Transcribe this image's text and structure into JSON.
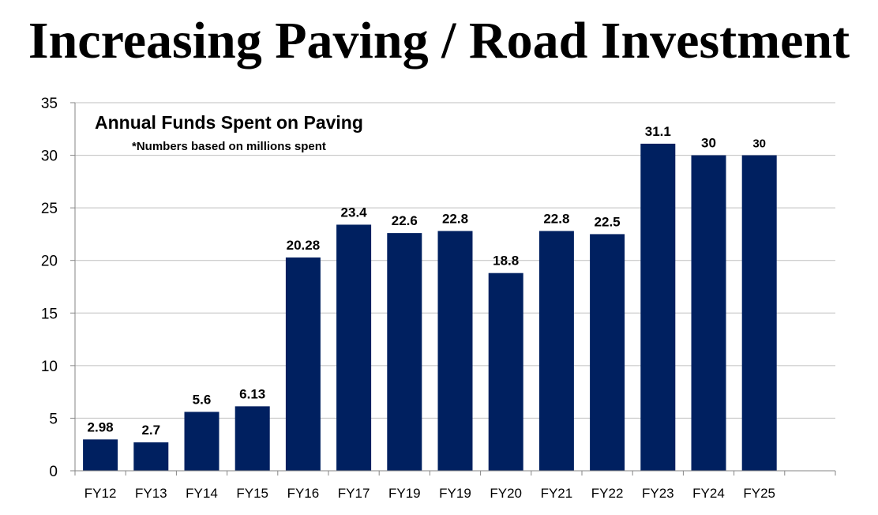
{
  "page": {
    "title": "Increasing Paving / Road Investment"
  },
  "colors": {
    "bar": "#002060",
    "grid": "#bfbfbf",
    "axis": "#868686"
  },
  "chart_data": {
    "type": "bar",
    "title": "Annual Funds Spent on Paving",
    "subtitle": "*Numbers based on millions spent",
    "xlabel": "",
    "ylabel": "",
    "ylim": [
      0,
      35
    ],
    "yticks": [
      0,
      5,
      10,
      15,
      20,
      25,
      30,
      35
    ],
    "grid": true,
    "legend": "none",
    "categories": [
      "FY12",
      "FY13",
      "FY14",
      "FY15",
      "FY16",
      "FY17",
      "FY19",
      "FY19",
      "FY20",
      "FY21",
      "FY22",
      "FY23",
      "FY24",
      "FY25"
    ],
    "values": [
      2.98,
      2.7,
      5.6,
      6.13,
      20.28,
      23.4,
      22.6,
      22.8,
      18.8,
      22.8,
      22.5,
      31.1,
      30,
      30
    ],
    "data_labels": [
      "2.98",
      "2.7",
      "5.6",
      "6.13",
      "20.28",
      "23.4",
      "22.6",
      "22.8",
      "18.8",
      "22.8",
      "22.5",
      "31.1",
      "30",
      "30"
    ]
  }
}
